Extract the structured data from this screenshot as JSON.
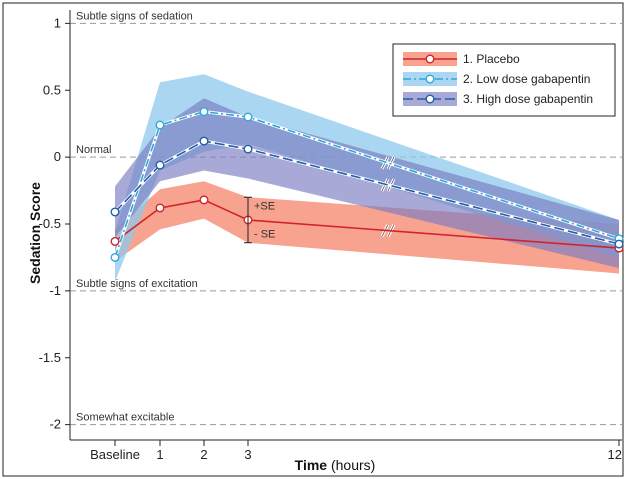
{
  "chart_data": {
    "type": "line",
    "xlabel_bold": "Time",
    "xlabel_rest": " (hours)",
    "ylabel": "Sedation Score",
    "x_ticks": [
      {
        "x": 0,
        "label": "Baseline"
      },
      {
        "x": 1,
        "label": "1"
      },
      {
        "x": 2,
        "label": "2"
      },
      {
        "x": 3,
        "label": "3"
      },
      {
        "x": 12,
        "label": "12"
      }
    ],
    "y_ticks": [
      {
        "y": 1,
        "label": "1"
      },
      {
        "y": 0.5,
        "label": "0.5"
      },
      {
        "y": 0,
        "label": "0"
      },
      {
        "y": -0.5,
        "label": "-0.5"
      },
      {
        "y": -1,
        "label": "-1"
      },
      {
        "y": -1.5,
        "label": "-1.5"
      },
      {
        "y": -2,
        "label": "-2"
      }
    ],
    "ylim": [
      -2.1,
      1.1
    ],
    "axis_break_between": [
      3,
      12
    ],
    "reference_lines": [
      {
        "y": 1,
        "label": "Subtle signs of sedation"
      },
      {
        "y": 0,
        "label": "Normal"
      },
      {
        "y": -1,
        "label": "Subtle signs of excitation"
      },
      {
        "y": -2,
        "label": "Somewhat excitable"
      }
    ],
    "se_annotation": {
      "x": 3,
      "upper": "+SE",
      "lower": "- SE"
    },
    "series": [
      {
        "name": "1. Placebo",
        "key": "placebo",
        "line_color": "#d2232a",
        "band_color": "#f4846a",
        "band_opacity": 0.75,
        "dash": "",
        "x": [
          0,
          1,
          2,
          3,
          12
        ],
        "y": [
          -0.63,
          -0.38,
          -0.32,
          -0.47,
          -0.68
        ],
        "upper": [
          -0.54,
          -0.24,
          -0.18,
          -0.3,
          -0.5
        ],
        "lower": [
          -0.78,
          -0.54,
          -0.46,
          -0.64,
          -0.87
        ]
      },
      {
        "name": "2. Low dose gabapentin",
        "key": "low",
        "line_color": "#2ea8dc",
        "band_color": "#8ec8ec",
        "band_opacity": 0.75,
        "dash": "8,3,2,3",
        "x": [
          0,
          1,
          2,
          3,
          12
        ],
        "y": [
          -0.75,
          0.24,
          0.34,
          0.3,
          -0.61
        ],
        "upper": [
          -0.56,
          0.56,
          0.62,
          0.49,
          -0.47
        ],
        "lower": [
          -0.93,
          -0.1,
          0.04,
          0.1,
          -0.75
        ]
      },
      {
        "name": "3. High dose gabapentin",
        "key": "high",
        "line_color": "#1f5fa8",
        "band_color": "#7a7bc2",
        "band_opacity": 0.65,
        "dash": "10,4",
        "x": [
          0,
          1,
          2,
          3,
          12
        ],
        "y": [
          -0.41,
          -0.06,
          0.12,
          0.06,
          -0.65
        ],
        "upper": [
          -0.22,
          0.22,
          0.44,
          0.3,
          -0.47
        ],
        "lower": [
          -0.6,
          -0.18,
          -0.1,
          -0.16,
          -0.83
        ]
      }
    ],
    "legend_position": "top-right"
  }
}
